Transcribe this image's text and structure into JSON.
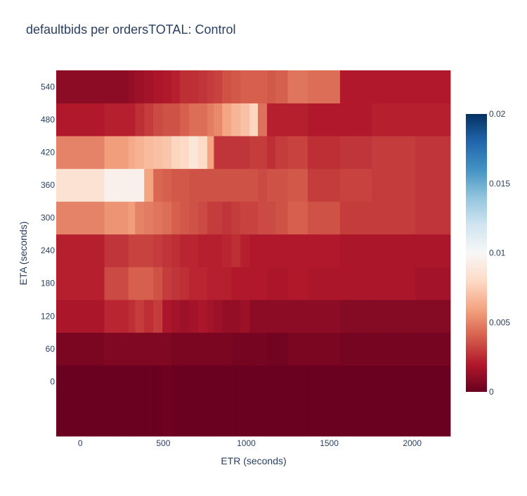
{
  "chart_data": {
    "type": "heatmap",
    "title": "defaultbids per ordersTOTAL: Control",
    "xlabel": "ETR (seconds)",
    "ylabel": "ETA (seconds)",
    "x_edges": [
      -145,
      145,
      290,
      330,
      385,
      440,
      495,
      550,
      600,
      655,
      710,
      765,
      805,
      855,
      910,
      965,
      1020,
      1070,
      1125,
      1175,
      1250,
      1370,
      1565,
      1755,
      2020,
      2230
    ],
    "y_edges": [
      -100,
      30,
      90,
      150,
      210,
      270,
      330,
      390,
      450,
      510,
      570
    ],
    "xlim": [
      -145,
      2230
    ],
    "ylim": [
      -100,
      570
    ],
    "x_ticks": [
      0,
      500,
      1000,
      1500,
      2000
    ],
    "y_ticks": [
      0,
      60,
      120,
      180,
      240,
      300,
      360,
      420,
      480,
      540
    ],
    "z": [
      [
        0.0001,
        0.0001,
        0.0001,
        0.0001,
        0.0001,
        0.0001,
        0.0002,
        0.0001,
        0.0001,
        0.0001,
        0.0001,
        0.0001,
        0.0001,
        0.0001,
        0.0001,
        0.0001,
        0.0001,
        0.0001,
        0.0001,
        0.0001,
        0.0001,
        0.0001,
        0.0001,
        0.0001,
        0.0001
      ],
      [
        0.0005,
        0.0007,
        0.0007,
        0.0007,
        0.0007,
        0.0007,
        0.0007,
        0.0005,
        0.0005,
        0.0005,
        0.0005,
        0.0005,
        0.0005,
        0.0005,
        0.0004,
        0.0004,
        0.0004,
        0.0004,
        0.0003,
        0.0003,
        0.0005,
        0.0005,
        0.0004,
        0.0004,
        0.0004
      ],
      [
        0.0018,
        0.0024,
        0.0026,
        0.003,
        0.0026,
        0.003,
        0.0018,
        0.0016,
        0.0014,
        0.0016,
        0.0018,
        0.0016,
        0.0014,
        0.0012,
        0.0012,
        0.0014,
        0.001,
        0.001,
        0.001,
        0.001,
        0.001,
        0.001,
        0.0008,
        0.0008,
        0.0008
      ],
      [
        0.0022,
        0.0034,
        0.004,
        0.004,
        0.004,
        0.0036,
        0.003,
        0.0028,
        0.0026,
        0.0024,
        0.0024,
        0.0022,
        0.0022,
        0.0022,
        0.002,
        0.002,
        0.002,
        0.002,
        0.0018,
        0.0018,
        0.002,
        0.0018,
        0.0018,
        0.0018,
        0.0016
      ],
      [
        0.0022,
        0.0028,
        0.0032,
        0.0032,
        0.0032,
        0.003,
        0.0028,
        0.0026,
        0.0024,
        0.0024,
        0.0022,
        0.0022,
        0.0022,
        0.0024,
        0.0026,
        0.0022,
        0.002,
        0.002,
        0.002,
        0.002,
        0.002,
        0.002,
        0.0018,
        0.0018,
        0.0018
      ],
      [
        0.005,
        0.0055,
        0.0058,
        0.005,
        0.0048,
        0.0046,
        0.0044,
        0.004,
        0.0038,
        0.0036,
        0.0034,
        0.003,
        0.003,
        0.0028,
        0.003,
        0.0032,
        0.0032,
        0.0034,
        0.0034,
        0.0036,
        0.004,
        0.0036,
        0.003,
        0.003,
        0.0028
      ],
      [
        0.0085,
        0.0095,
        0.0095,
        0.0095,
        0.006,
        0.0042,
        0.004,
        0.0038,
        0.0038,
        0.0036,
        0.0036,
        0.0036,
        0.0036,
        0.0036,
        0.0036,
        0.0036,
        0.0036,
        0.0034,
        0.0036,
        0.0036,
        0.0038,
        0.003,
        0.0032,
        0.003,
        0.0028
      ],
      [
        0.005,
        0.0058,
        0.0062,
        0.0065,
        0.0068,
        0.007,
        0.0072,
        0.0078,
        0.008,
        0.0088,
        0.008,
        0.006,
        0.0028,
        0.0028,
        0.0028,
        0.0028,
        0.003,
        0.003,
        0.0026,
        0.003,
        0.0032,
        0.0026,
        0.0028,
        0.003,
        0.0028
      ],
      [
        0.002,
        0.0022,
        0.0022,
        0.0026,
        0.003,
        0.0034,
        0.0036,
        0.0036,
        0.004,
        0.0044,
        0.0044,
        0.0048,
        0.0052,
        0.006,
        0.0066,
        0.007,
        0.0078,
        0.0045,
        0.0022,
        0.0022,
        0.0022,
        0.002,
        0.002,
        0.0022,
        0.0022
      ],
      [
        0.001,
        0.001,
        0.0012,
        0.0014,
        0.0016,
        0.0018,
        0.002,
        0.0022,
        0.0026,
        0.0026,
        0.0028,
        0.003,
        0.0032,
        0.0036,
        0.0038,
        0.004,
        0.004,
        0.004,
        0.0038,
        0.004,
        0.0046,
        0.0044,
        0.002,
        0.002,
        0.002
      ]
    ],
    "colorscale": {
      "name": "RdBu",
      "min": 0,
      "max": 0.02,
      "ticks": [
        0,
        0.005,
        0.01,
        0.015,
        0.02
      ],
      "tick_labels": [
        "0",
        "0.005",
        "0.01",
        "0.015",
        "0.02"
      ],
      "stops": [
        "#67001f",
        "#b2182b",
        "#d6604d",
        "#f4a582",
        "#fddbc7",
        "#f7f7f7",
        "#d1e5f0",
        "#92c5de",
        "#4393c3",
        "#2166ac",
        "#053061"
      ]
    },
    "legend": "colorbar-right"
  }
}
